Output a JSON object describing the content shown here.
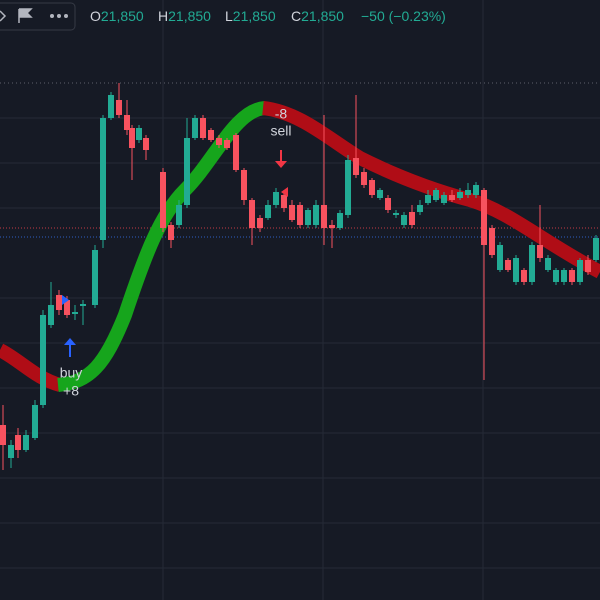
{
  "header": {
    "ohlc": [
      {
        "label": "O",
        "value": "21,850"
      },
      {
        "label": "H",
        "value": "21,850"
      },
      {
        "label": "L",
        "value": "21,850"
      },
      {
        "label": "C",
        "value": "21,850"
      }
    ],
    "change": "−50 (−0.23%)"
  },
  "signals": {
    "buy": {
      "label": "buy",
      "qty": "+8"
    },
    "sell": {
      "label": "sell",
      "qty": "-8"
    }
  }
}
